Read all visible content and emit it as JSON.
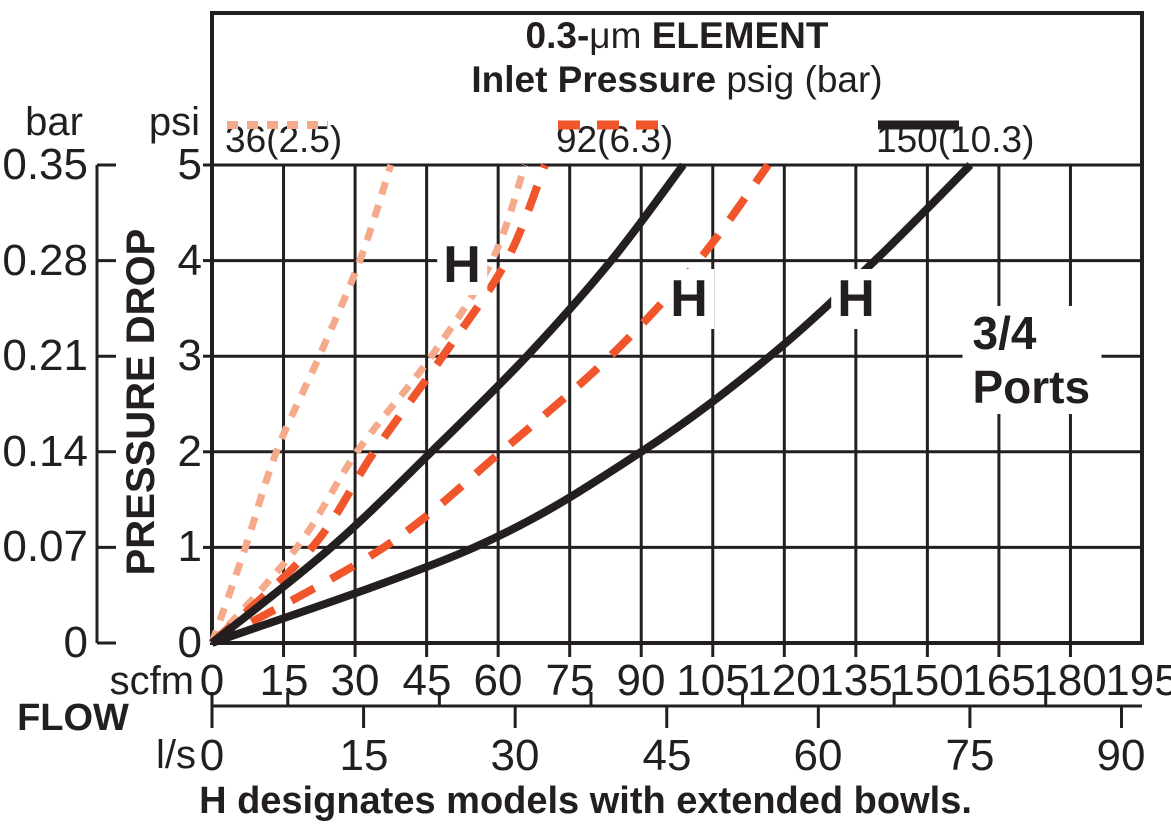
{
  "header": {
    "title_prefix": "0.3-",
    "title_mu": "μm",
    "title_suffix": " ELEMENT",
    "subtitle_bold": "Inlet Pressure",
    "subtitle_rest": " psig (bar)"
  },
  "legend": {
    "items": [
      {
        "label": "36(2.5)",
        "style": "dotted",
        "color": "#F5AA8B"
      },
      {
        "label": "92(6.3)",
        "style": "dashed",
        "color": "#F1552B"
      },
      {
        "label": "150(10.3)",
        "style": "solid",
        "color": "#231F20"
      }
    ]
  },
  "axes": {
    "pressure": {
      "bar_unit": "bar",
      "psi_unit": "psi",
      "axis_label": "PRESSURE DROP",
      "psi_ticks_top_down": [
        "5",
        "4",
        "3",
        "2",
        "1",
        "0"
      ],
      "bar_ticks_top_down": [
        "0.35",
        "0.28",
        "0.21",
        "0.14",
        "0.07",
        "0"
      ]
    },
    "flow": {
      "label": "FLOW",
      "scfm_unit": "scfm",
      "ls_unit": "l/s"
    }
  },
  "caption": "H designates models with extended bowls.",
  "chart_data": {
    "type": "line",
    "title": "0.3-μm ELEMENT",
    "subtitle": "Inlet Pressure psig (bar)",
    "xlabel": "FLOW",
    "ylabel": "PRESSURE DROP",
    "x_units": {
      "primary": "scfm",
      "secondary": "l/s",
      "scfm_per_ls": 2.1189
    },
    "y_units": {
      "primary": "psi",
      "secondary": "bar"
    },
    "xlim_scfm": [
      0,
      195
    ],
    "ylim_psi": [
      0,
      5
    ],
    "x_ticks_scfm": [
      0,
      15,
      30,
      45,
      60,
      75,
      90,
      105,
      120,
      135,
      150,
      165,
      180,
      195
    ],
    "x_ticks_ls": [
      0,
      15,
      30,
      45,
      60,
      75,
      90
    ],
    "y_ticks_psi": [
      0,
      1,
      2,
      3,
      4,
      5
    ],
    "y_ticks_bar": [
      0,
      0.07,
      0.14,
      0.21,
      0.28,
      0.35
    ],
    "grid": true,
    "legend_position": "top",
    "port_size_note": "3/4 Ports",
    "series": [
      {
        "name": "36(2.5)",
        "inlet_pressure_psig": 36,
        "inlet_pressure_bar": 2.5,
        "model": "standard",
        "line": "dotted",
        "color": "#F5AA8B",
        "points_scfm_psi": [
          [
            0,
            0
          ],
          [
            7,
            1
          ],
          [
            13.5,
            2
          ],
          [
            22.5,
            3
          ],
          [
            31,
            4
          ],
          [
            37.5,
            5
          ]
        ]
      },
      {
        "name": "36(2.5) H",
        "inlet_pressure_psig": 36,
        "inlet_pressure_bar": 2.5,
        "model": "H extended bowl",
        "line": "dotted",
        "color": "#F5AA8B",
        "points_scfm_psi": [
          [
            0,
            0
          ],
          [
            17.8,
            1
          ],
          [
            30.4,
            2
          ],
          [
            46,
            3
          ],
          [
            58.7,
            4
          ],
          [
            65.6,
            5
          ]
        ]
      },
      {
        "name": "92(6.3)",
        "inlet_pressure_psig": 92,
        "inlet_pressure_bar": 6.3,
        "model": "standard",
        "line": "dashed",
        "color": "#F1552B",
        "points_scfm_psi": [
          [
            0,
            0
          ],
          [
            21,
            1
          ],
          [
            34,
            2
          ],
          [
            48.4,
            3
          ],
          [
            61.8,
            4
          ],
          [
            69.8,
            5
          ]
        ]
      },
      {
        "name": "92(6.3) H",
        "inlet_pressure_psig": 92,
        "inlet_pressure_bar": 6.3,
        "model": "H extended bowl",
        "line": "dashed",
        "color": "#F1552B",
        "points_scfm_psi": [
          [
            0,
            0
          ],
          [
            36,
            1
          ],
          [
            60.6,
            2
          ],
          [
            83.5,
            3
          ],
          [
            102,
            4
          ],
          [
            116.6,
            5
          ]
        ]
      },
      {
        "name": "150(10.3)",
        "inlet_pressure_psig": 150,
        "inlet_pressure_bar": 10.3,
        "model": "standard",
        "line": "solid",
        "color": "#231F20",
        "points_scfm_psi": [
          [
            0,
            0
          ],
          [
            25,
            1
          ],
          [
            46,
            2
          ],
          [
            66,
            3
          ],
          [
            83.7,
            4
          ],
          [
            98.8,
            5
          ]
        ]
      },
      {
        "name": "150(10.3) H",
        "inlet_pressure_psig": 150,
        "inlet_pressure_bar": 10.3,
        "model": "H extended bowl",
        "line": "solid",
        "color": "#231F20",
        "points_scfm_psi": [
          [
            0,
            0
          ],
          [
            55,
            1
          ],
          [
            90,
            2
          ],
          [
            117,
            3
          ],
          [
            139,
            4
          ],
          [
            159,
            5
          ]
        ]
      }
    ],
    "annotations": [
      {
        "text": "H",
        "kind": "h",
        "scfm": 52.5,
        "psi": 3.95
      },
      {
        "text": "H",
        "kind": "h",
        "scfm": 100,
        "psi": 3.6
      },
      {
        "text": "H",
        "kind": "h",
        "scfm": 135,
        "psi": 3.6
      },
      {
        "text": "3/4 Ports",
        "kind": "ports",
        "scfm": 172,
        "psi": 2.96
      }
    ]
  }
}
